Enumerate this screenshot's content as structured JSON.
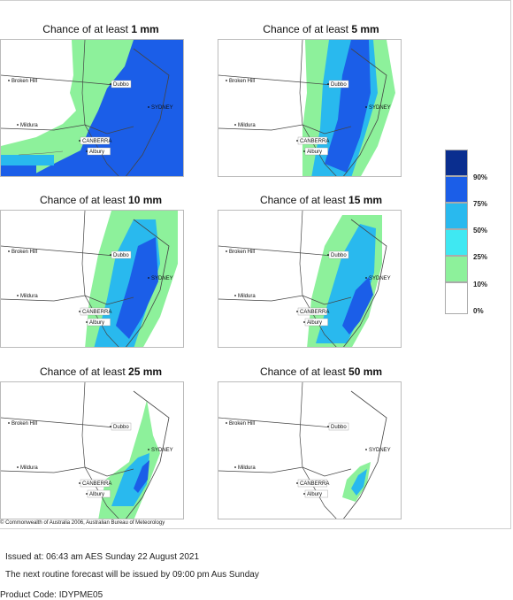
{
  "panels": [
    {
      "title_prefix": "Chance of at least ",
      "amount": "1 mm"
    },
    {
      "title_prefix": "Chance of at least ",
      "amount": "5 mm"
    },
    {
      "title_prefix": "Chance of at least ",
      "amount": "10 mm"
    },
    {
      "title_prefix": "Chance of at least ",
      "amount": "15 mm"
    },
    {
      "title_prefix": "Chance of at least ",
      "amount": "25 mm"
    },
    {
      "title_prefix": "Chance of at least ",
      "amount": "50 mm"
    }
  ],
  "places": {
    "broken_hill": "Broken Hill",
    "dubbo": "Dubbo",
    "sydney": "SYDNEY",
    "mildura": "Mildura",
    "canberra": "CANBERRA",
    "albury": "Albury"
  },
  "legend": {
    "labels": [
      "90%",
      "75%",
      "50%",
      "25%",
      "10%",
      "0%"
    ],
    "colors": [
      "#0a2e8f",
      "#1b5ee8",
      "#29b9ee",
      "#3fe8f2",
      "#8df19b",
      "#ffffff"
    ]
  },
  "copyright": "© Commonwealth of Australia 2006, Australian Bureau of Meteorology",
  "issued": "Issued at: 06:43 am AES Sunday 22 August 2021",
  "next_forecast": "The next routine forecast will be issued by 09:00 pm Aus Sunday",
  "product_code": "Product Code: IDYPME05"
}
